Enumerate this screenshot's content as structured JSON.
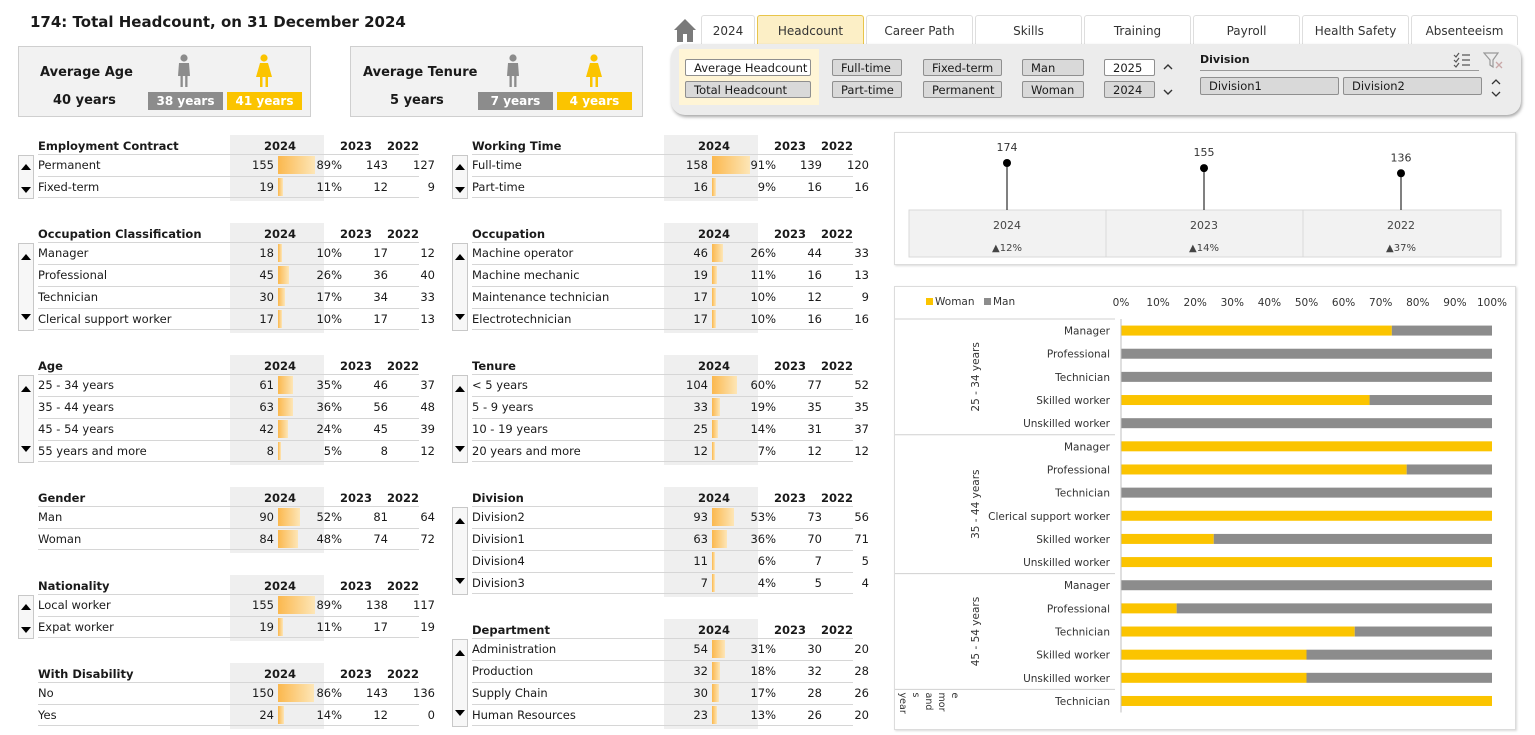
{
  "title": "174: Total Headcount, on 31 December 2024",
  "kpis": {
    "age": {
      "label": "Average Age",
      "value": "40 years",
      "man": "38 years",
      "woman": "41 years"
    },
    "tenure": {
      "label": "Average Tenure",
      "value": "5 years",
      "man": "7 years",
      "woman": "4 years"
    }
  },
  "tabs": [
    "2024",
    "Headcount",
    "Career Path",
    "Skills",
    "Training",
    "Payroll",
    "Health  Safety",
    "Absenteeism"
  ],
  "active_tab": "Headcount",
  "filters": {
    "measures": [
      "Average Headcount",
      "Total Headcount"
    ],
    "working_time": [
      "Full-time",
      "Part-time"
    ],
    "contract": [
      "Fixed-term",
      "Permanent"
    ],
    "gender": [
      "Man",
      "Woman"
    ],
    "years": [
      "2025",
      "2024"
    ],
    "division_title": "Division",
    "divisions": [
      "Division1",
      "Division2"
    ]
  },
  "colors": {
    "woman": "#fbc400",
    "man": "#8c8c8c",
    "accent": "#fbb84e"
  },
  "tables": [
    {
      "title": "Employment Contract",
      "years": [
        "2024",
        "2023",
        "2022"
      ],
      "rows": [
        {
          "label": "Permanent",
          "v": "155",
          "p": "89%",
          "pct": 89,
          "a": "143",
          "b": "127"
        },
        {
          "label": "Fixed-term",
          "v": "19",
          "p": "11%",
          "pct": 11,
          "a": "12",
          "b": "9"
        }
      ]
    },
    {
      "title": "Working Time",
      "years": [
        "2024",
        "2023",
        "2022"
      ],
      "rows": [
        {
          "label": "Full-time",
          "v": "158",
          "p": "91%",
          "pct": 91,
          "a": "139",
          "b": "120"
        },
        {
          "label": "Part-time",
          "v": "16",
          "p": "9%",
          "pct": 9,
          "a": "16",
          "b": "16"
        }
      ]
    },
    {
      "title": "Occupation Classification",
      "years": [
        "2024",
        "2023",
        "2022"
      ],
      "rows": [
        {
          "label": "Manager",
          "v": "18",
          "p": "10%",
          "pct": 10,
          "a": "17",
          "b": "12"
        },
        {
          "label": "Professional",
          "v": "45",
          "p": "26%",
          "pct": 26,
          "a": "36",
          "b": "40"
        },
        {
          "label": "Technician",
          "v": "30",
          "p": "17%",
          "pct": 17,
          "a": "34",
          "b": "33"
        },
        {
          "label": "Clerical support worker",
          "v": "17",
          "p": "10%",
          "pct": 10,
          "a": "17",
          "b": "13"
        }
      ]
    },
    {
      "title": "Occupation",
      "years": [
        "2024",
        "2023",
        "2022"
      ],
      "rows": [
        {
          "label": "Machine operator",
          "v": "46",
          "p": "26%",
          "pct": 26,
          "a": "44",
          "b": "33"
        },
        {
          "label": "Machine mechanic",
          "v": "19",
          "p": "11%",
          "pct": 11,
          "a": "16",
          "b": "13"
        },
        {
          "label": "Maintenance technician",
          "v": "17",
          "p": "10%",
          "pct": 10,
          "a": "12",
          "b": "9"
        },
        {
          "label": "Electrotechnician",
          "v": "17",
          "p": "10%",
          "pct": 10,
          "a": "16",
          "b": "16"
        }
      ]
    },
    {
      "title": "Age",
      "years": [
        "2024",
        "2023",
        "2022"
      ],
      "rows": [
        {
          "label": "25 - 34 years",
          "v": "61",
          "p": "35%",
          "pct": 35,
          "a": "46",
          "b": "37"
        },
        {
          "label": "35 - 44 years",
          "v": "63",
          "p": "36%",
          "pct": 36,
          "a": "56",
          "b": "48"
        },
        {
          "label": "45 - 54 years",
          "v": "42",
          "p": "24%",
          "pct": 24,
          "a": "45",
          "b": "39"
        },
        {
          "label": "55 years and more",
          "v": "8",
          "p": "5%",
          "pct": 5,
          "a": "8",
          "b": "12"
        }
      ]
    },
    {
      "title": "Tenure",
      "years": [
        "2024",
        "2023",
        "2022"
      ],
      "rows": [
        {
          "label": "< 5 years",
          "v": "104",
          "p": "60%",
          "pct": 60,
          "a": "77",
          "b": "52"
        },
        {
          "label": "5 - 9 years",
          "v": "33",
          "p": "19%",
          "pct": 19,
          "a": "35",
          "b": "35"
        },
        {
          "label": "10 - 19 years",
          "v": "25",
          "p": "14%",
          "pct": 14,
          "a": "31",
          "b": "37"
        },
        {
          "label": "20 years and more",
          "v": "12",
          "p": "7%",
          "pct": 7,
          "a": "12",
          "b": "12"
        }
      ]
    },
    {
      "title": "Gender",
      "years": [
        "2024",
        "2023",
        "2022"
      ],
      "rows": [
        {
          "label": "Man",
          "v": "90",
          "p": "52%",
          "pct": 52,
          "a": "81",
          "b": "64"
        },
        {
          "label": "Woman",
          "v": "84",
          "p": "48%",
          "pct": 48,
          "a": "74",
          "b": "72"
        }
      ]
    },
    {
      "title": "Division",
      "years": [
        "2024",
        "2023",
        "2022"
      ],
      "rows": [
        {
          "label": "Division2",
          "v": "93",
          "p": "53%",
          "pct": 53,
          "a": "73",
          "b": "56"
        },
        {
          "label": "Division1",
          "v": "63",
          "p": "36%",
          "pct": 36,
          "a": "70",
          "b": "71"
        },
        {
          "label": "Division4",
          "v": "11",
          "p": "6%",
          "pct": 6,
          "a": "7",
          "b": "5"
        },
        {
          "label": "Division3",
          "v": "7",
          "p": "4%",
          "pct": 4,
          "a": "5",
          "b": "4"
        }
      ]
    },
    {
      "title": "Nationality",
      "years": [
        "2024",
        "2023",
        "2022"
      ],
      "rows": [
        {
          "label": "Local worker",
          "v": "155",
          "p": "89%",
          "pct": 89,
          "a": "138",
          "b": "117"
        },
        {
          "label": "Expat worker",
          "v": "19",
          "p": "11%",
          "pct": 11,
          "a": "17",
          "b": "19"
        }
      ]
    },
    {
      "title": "Department",
      "years": [
        "2024",
        "2023",
        "2022"
      ],
      "rows": [
        {
          "label": "Administration",
          "v": "54",
          "p": "31%",
          "pct": 31,
          "a": "30",
          "b": "20"
        },
        {
          "label": "Production",
          "v": "32",
          "p": "18%",
          "pct": 18,
          "a": "32",
          "b": "28"
        },
        {
          "label": "Supply Chain",
          "v": "30",
          "p": "17%",
          "pct": 17,
          "a": "28",
          "b": "26"
        },
        {
          "label": "Human Resources",
          "v": "23",
          "p": "13%",
          "pct": 13,
          "a": "26",
          "b": "20"
        }
      ]
    },
    {
      "title": "With Disability",
      "years": [
        "2024",
        "2023",
        "2022"
      ],
      "rows": [
        {
          "label": "No",
          "v": "150",
          "p": "86%",
          "pct": 86,
          "a": "143",
          "b": "136"
        },
        {
          "label": "Yes",
          "v": "24",
          "p": "14%",
          "pct": 14,
          "a": "12",
          "b": "0"
        }
      ]
    }
  ],
  "chart_data": [
    {
      "type": "line",
      "series": [
        {
          "values": [
            174,
            155,
            136
          ]
        }
      ],
      "categories": [
        "2024",
        "2023",
        "2022"
      ],
      "labels": [
        "174",
        "155",
        "136"
      ],
      "changes": [
        "▲12%",
        "▲14%",
        "▲37%"
      ]
    },
    {
      "type": "bar",
      "stacked": true,
      "orientation": "horizontal",
      "legend": [
        "Woman",
        "Man"
      ],
      "legend_position": "top-left",
      "xticks": [
        "0%",
        "10%",
        "20%",
        "30%",
        "40%",
        "50%",
        "60%",
        "70%",
        "80%",
        "90%",
        "100%"
      ],
      "xlim": [
        0,
        100
      ],
      "groups": [
        {
          "name": "25 - 34 years",
          "rows": [
            {
              "label": "Manager",
              "woman": 73
            },
            {
              "label": "Professional",
              "woman": 0
            },
            {
              "label": "Technician",
              "woman": 0
            },
            {
              "label": "Skilled worker",
              "woman": 67
            },
            {
              "label": "Unskilled worker",
              "woman": 0
            }
          ]
        },
        {
          "name": "35 - 44 years",
          "rows": [
            {
              "label": "Manager",
              "woman": 100
            },
            {
              "label": "Professional",
              "woman": 77
            },
            {
              "label": "Technician",
              "woman": 0
            },
            {
              "label": "Clerical support worker",
              "woman": 100
            },
            {
              "label": "Skilled worker",
              "woman": 25
            },
            {
              "label": "Unskilled worker",
              "woman": 100
            }
          ]
        },
        {
          "name": "45 - 54 years",
          "rows": [
            {
              "label": "Manager",
              "woman": 0
            },
            {
              "label": "Professional",
              "woman": 15
            },
            {
              "label": "Technician",
              "woman": 63
            },
            {
              "label": "Skilled worker",
              "woman": 50
            },
            {
              "label": "Unskilled worker",
              "woman": 50
            }
          ]
        },
        {
          "name": "55 year s and mor e",
          "rows": [
            {
              "label": "Technician",
              "woman": 100
            }
          ]
        }
      ]
    }
  ]
}
